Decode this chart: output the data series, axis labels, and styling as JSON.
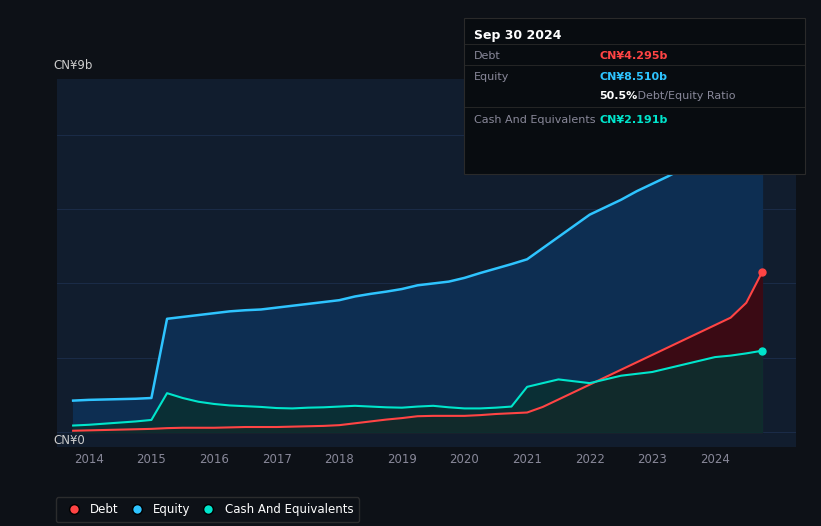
{
  "bg_color": "#0d1117",
  "plot_bg_color": "#111d2e",
  "grid_color": "#1e3050",
  "title_box": {
    "date": "Sep 30 2024",
    "debt_label": "Debt",
    "debt_value": "CN¥4.295b",
    "debt_color": "#ff4444",
    "equity_label": "Equity",
    "equity_value": "CN¥8.510b",
    "equity_color": "#2ec4ff",
    "ratio_bold": "50.5%",
    "ratio_text": " Debt/Equity Ratio",
    "cash_label": "Cash And Equivalents",
    "cash_value": "CN¥2.191b",
    "cash_color": "#00e5cc",
    "box_bg": "#080c10",
    "box_border": "#2a2a2a",
    "label_color": "#888899"
  },
  "ylabel_top": "CN¥9b",
  "ylabel_bottom": "CN¥0",
  "xlim": [
    2013.5,
    2025.3
  ],
  "ylim": [
    -0.4,
    9.5
  ],
  "xticks": [
    2014,
    2015,
    2016,
    2017,
    2018,
    2019,
    2020,
    2021,
    2022,
    2023,
    2024
  ],
  "line_colors": {
    "debt": "#ff4444",
    "equity": "#2ec4ff",
    "cash": "#00e5cc"
  },
  "fill_colors": {
    "equity": "#0d2e52",
    "debt": "#3a0a14",
    "cash": "#0a3030"
  },
  "legend": [
    {
      "label": "Debt",
      "color": "#ff4444"
    },
    {
      "label": "Equity",
      "color": "#2ec4ff"
    },
    {
      "label": "Cash And Equivalents",
      "color": "#00e5cc"
    }
  ],
  "years": [
    2013.75,
    2014.0,
    2014.25,
    2014.5,
    2014.75,
    2015.0,
    2015.25,
    2015.5,
    2015.75,
    2016.0,
    2016.25,
    2016.5,
    2016.75,
    2017.0,
    2017.25,
    2017.5,
    2017.75,
    2018.0,
    2018.25,
    2018.5,
    2018.75,
    2019.0,
    2019.25,
    2019.5,
    2019.75,
    2020.0,
    2020.25,
    2020.5,
    2020.75,
    2021.0,
    2021.25,
    2021.5,
    2021.75,
    2022.0,
    2022.25,
    2022.5,
    2022.75,
    2023.0,
    2023.25,
    2023.5,
    2023.75,
    2024.0,
    2024.25,
    2024.5,
    2024.75
  ],
  "equity": [
    0.85,
    0.87,
    0.88,
    0.89,
    0.9,
    0.92,
    3.05,
    3.1,
    3.15,
    3.2,
    3.25,
    3.28,
    3.3,
    3.35,
    3.4,
    3.45,
    3.5,
    3.55,
    3.65,
    3.72,
    3.78,
    3.85,
    3.95,
    4.0,
    4.05,
    4.15,
    4.28,
    4.4,
    4.52,
    4.65,
    4.95,
    5.25,
    5.55,
    5.85,
    6.05,
    6.25,
    6.48,
    6.68,
    6.88,
    7.1,
    7.38,
    7.65,
    7.95,
    8.25,
    8.51
  ],
  "debt": [
    0.04,
    0.05,
    0.06,
    0.07,
    0.08,
    0.09,
    0.11,
    0.12,
    0.12,
    0.12,
    0.13,
    0.14,
    0.14,
    0.14,
    0.15,
    0.16,
    0.17,
    0.19,
    0.24,
    0.29,
    0.34,
    0.38,
    0.43,
    0.44,
    0.44,
    0.44,
    0.46,
    0.49,
    0.51,
    0.53,
    0.68,
    0.88,
    1.08,
    1.28,
    1.48,
    1.68,
    1.88,
    2.08,
    2.28,
    2.48,
    2.68,
    2.88,
    3.08,
    3.48,
    4.295
  ],
  "cash": [
    0.18,
    0.2,
    0.23,
    0.26,
    0.29,
    0.33,
    1.05,
    0.92,
    0.82,
    0.76,
    0.72,
    0.7,
    0.68,
    0.65,
    0.64,
    0.66,
    0.67,
    0.69,
    0.71,
    0.69,
    0.67,
    0.66,
    0.69,
    0.71,
    0.67,
    0.64,
    0.64,
    0.66,
    0.69,
    1.22,
    1.32,
    1.42,
    1.37,
    1.32,
    1.42,
    1.52,
    1.57,
    1.62,
    1.72,
    1.82,
    1.92,
    2.02,
    2.06,
    2.12,
    2.191
  ]
}
